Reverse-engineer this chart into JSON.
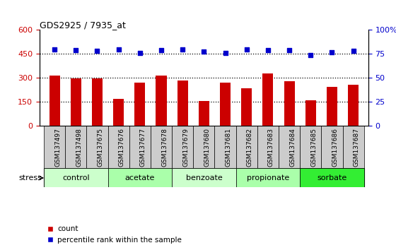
{
  "title": "GDS2925 / 7935_at",
  "samples": [
    "GSM137497",
    "GSM137498",
    "GSM137675",
    "GSM137676",
    "GSM137677",
    "GSM137678",
    "GSM137679",
    "GSM137680",
    "GSM137681",
    "GSM137682",
    "GSM137683",
    "GSM137684",
    "GSM137685",
    "GSM137686",
    "GSM137687"
  ],
  "counts": [
    315,
    295,
    295,
    170,
    270,
    315,
    285,
    155,
    270,
    235,
    330,
    280,
    160,
    245,
    255
  ],
  "percentiles": [
    480,
    475,
    470,
    480,
    455,
    475,
    480,
    465,
    455,
    480,
    475,
    475,
    445,
    460,
    470
  ],
  "bar_color": "#cc0000",
  "dot_color": "#0000cc",
  "left_ylim": [
    0,
    600
  ],
  "left_yticks": [
    0,
    150,
    300,
    450,
    600
  ],
  "right_ylim": [
    0,
    600
  ],
  "right_yticks": [
    0,
    150,
    300,
    450,
    600
  ],
  "right_yticklabels": [
    "0",
    "25",
    "50",
    "75",
    "100%"
  ],
  "groups": [
    {
      "label": "control",
      "start": 0,
      "end": 3,
      "color": "#ccffcc"
    },
    {
      "label": "acetate",
      "start": 3,
      "end": 6,
      "color": "#aaffaa"
    },
    {
      "label": "benzoate",
      "start": 6,
      "end": 9,
      "color": "#ccffcc"
    },
    {
      "label": "propionate",
      "start": 9,
      "end": 12,
      "color": "#aaffaa"
    },
    {
      "label": "sorbate",
      "start": 12,
      "end": 15,
      "color": "#33ee33"
    }
  ],
  "dotted_lines": [
    150,
    300,
    450
  ],
  "bar_color_label": "count",
  "dot_color_label": "percentile rank within the sample",
  "left_ylabel_color": "#cc0000",
  "right_ylabel_color": "#0000cc",
  "sample_box_color": "#cccccc",
  "stress_label": "stress"
}
